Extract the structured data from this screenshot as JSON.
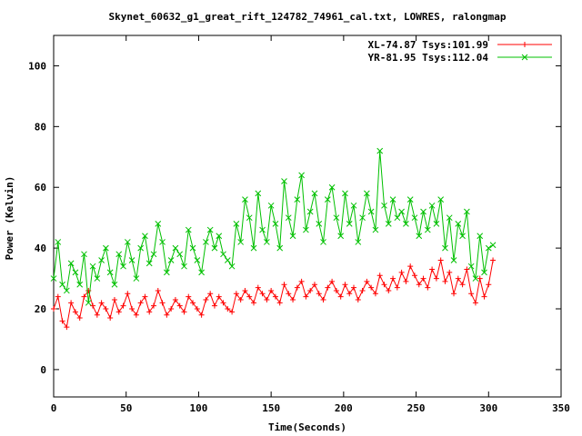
{
  "chart_data": {
    "type": "line",
    "title": "Skynet_60632_g1_great_rift_124782_74961_cal.txt, LOWRES, ralongmap",
    "xlabel": "Time(Seconds)",
    "ylabel": "Power (Kelvin)",
    "xlim": [
      0,
      350
    ],
    "ylim": [
      -9,
      110
    ],
    "x_ticks": [
      0,
      50,
      100,
      150,
      200,
      250,
      300,
      350
    ],
    "y_ticks": [
      0,
      20,
      40,
      60,
      80,
      100
    ],
    "grid": false,
    "legend_position": "top-right",
    "series": [
      {
        "name": "XL-74.87 Tsys:101.99",
        "color": "#ff0000",
        "marker": "plus",
        "x": [
          0,
          3,
          6,
          9,
          12,
          15,
          18,
          21,
          24,
          27,
          30,
          33,
          36,
          39,
          42,
          45,
          48,
          51,
          54,
          57,
          60,
          63,
          66,
          69,
          72,
          75,
          78,
          81,
          84,
          87,
          90,
          93,
          96,
          99,
          102,
          105,
          108,
          111,
          114,
          117,
          120,
          123,
          126,
          129,
          132,
          135,
          138,
          141,
          144,
          147,
          150,
          153,
          156,
          159,
          162,
          165,
          168,
          171,
          174,
          177,
          180,
          183,
          186,
          189,
          192,
          195,
          198,
          201,
          204,
          207,
          210,
          213,
          216,
          219,
          222,
          225,
          228,
          231,
          234,
          237,
          240,
          243,
          246,
          249,
          252,
          255,
          258,
          261,
          264,
          267,
          270,
          273,
          276,
          279,
          282,
          285,
          288,
          291,
          294,
          297,
          300,
          303
        ],
        "y": [
          20,
          24,
          16,
          14,
          22,
          19,
          17,
          24,
          26,
          21,
          18,
          22,
          20,
          17,
          23,
          19,
          21,
          25,
          20,
          18,
          22,
          24,
          19,
          21,
          26,
          22,
          18,
          20,
          23,
          21,
          19,
          24,
          22,
          20,
          18,
          23,
          25,
          21,
          24,
          22,
          20,
          19,
          25,
          23,
          26,
          24,
          22,
          27,
          25,
          23,
          26,
          24,
          22,
          28,
          25,
          23,
          27,
          29,
          24,
          26,
          28,
          25,
          23,
          27,
          29,
          26,
          24,
          28,
          25,
          27,
          23,
          26,
          29,
          27,
          25,
          31,
          28,
          26,
          30,
          27,
          32,
          29,
          34,
          31,
          28,
          30,
          27,
          33,
          30,
          36,
          29,
          32,
          25,
          30,
          28,
          33,
          25,
          22,
          30,
          24,
          28,
          36
        ]
      },
      {
        "name": "YR-81.95 Tsys:112.04",
        "color": "#00c000",
        "marker": "x",
        "x": [
          0,
          3,
          6,
          9,
          12,
          15,
          18,
          21,
          24,
          27,
          30,
          33,
          36,
          39,
          42,
          45,
          48,
          51,
          54,
          57,
          60,
          63,
          66,
          69,
          72,
          75,
          78,
          81,
          84,
          87,
          90,
          93,
          96,
          99,
          102,
          105,
          108,
          111,
          114,
          117,
          120,
          123,
          126,
          129,
          132,
          135,
          138,
          141,
          144,
          147,
          150,
          153,
          156,
          159,
          162,
          165,
          168,
          171,
          174,
          177,
          180,
          183,
          186,
          189,
          192,
          195,
          198,
          201,
          204,
          207,
          210,
          213,
          216,
          219,
          222,
          225,
          228,
          231,
          234,
          237,
          240,
          243,
          246,
          249,
          252,
          255,
          258,
          261,
          264,
          267,
          270,
          273,
          276,
          279,
          282,
          285,
          288,
          291,
          294,
          297,
          300,
          303
        ],
        "y": [
          30,
          42,
          28,
          26,
          35,
          32,
          28,
          38,
          22,
          34,
          30,
          36,
          40,
          32,
          28,
          38,
          34,
          42,
          36,
          30,
          40,
          44,
          35,
          38,
          48,
          42,
          32,
          36,
          40,
          38,
          34,
          46,
          40,
          36,
          32,
          42,
          46,
          40,
          44,
          38,
          36,
          34,
          48,
          42,
          56,
          50,
          40,
          58,
          46,
          42,
          54,
          48,
          40,
          62,
          50,
          44,
          56,
          64,
          46,
          52,
          58,
          48,
          42,
          56,
          60,
          50,
          44,
          58,
          48,
          54,
          42,
          50,
          58,
          52,
          46,
          72,
          54,
          48,
          56,
          50,
          52,
          48,
          56,
          50,
          44,
          52,
          46,
          54,
          48,
          56,
          40,
          50,
          36,
          48,
          44,
          52,
          34,
          30,
          44,
          32,
          40,
          41
        ]
      }
    ]
  }
}
